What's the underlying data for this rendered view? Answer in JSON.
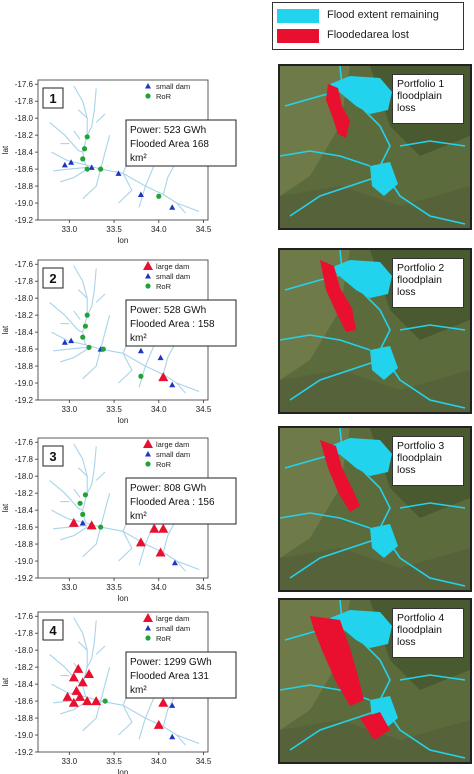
{
  "legend": {
    "items": [
      {
        "label": "Flood extent remaining",
        "color": "#22d3ee"
      },
      {
        "label": "Floodedarea lost",
        "color": "#e8102e"
      }
    ]
  },
  "colors": {
    "river": "#a8d4ea",
    "large_dam": "#e8102e",
    "small_dam": "#1f33c4",
    "ror": "#21a33a"
  },
  "chart_data": [
    {
      "type": "scatter",
      "panel_number": "1",
      "xlabel": "lon",
      "ylabel": "lat",
      "xlim": [
        32.65,
        34.55
      ],
      "ylim": [
        -19.2,
        -17.55
      ],
      "xticks": [
        "33.0",
        "33.5",
        "34.0",
        "34.5"
      ],
      "yticks": [
        "-17.6",
        "-17.8",
        "-18.0",
        "-18.2",
        "-18.4",
        "-18.6",
        "-18.8",
        "-19.0",
        "-19.2"
      ],
      "legend_entries": [
        "small dam",
        "RoR"
      ],
      "annotation_lines": [
        "Power: 523 GWh",
        "Flooded Area 168",
        "km²"
      ],
      "series": [
        {
          "name": "small dam",
          "points": [
            [
              32.95,
              -18.55
            ],
            [
              33.02,
              -18.52
            ],
            [
              33.25,
              -18.58
            ],
            [
              33.55,
              -18.65
            ],
            [
              33.8,
              -18.9
            ],
            [
              34.15,
              -19.05
            ]
          ]
        },
        {
          "name": "RoR",
          "points": [
            [
              33.2,
              -18.22
            ],
            [
              33.17,
              -18.36
            ],
            [
              33.15,
              -18.48
            ],
            [
              33.2,
              -18.6
            ],
            [
              33.35,
              -18.6
            ],
            [
              34.0,
              -18.92
            ]
          ]
        }
      ]
    },
    {
      "type": "scatter",
      "panel_number": "2",
      "xlabel": "lon",
      "ylabel": "lat",
      "xlim": [
        32.65,
        34.55
      ],
      "ylim": [
        -19.2,
        -17.55
      ],
      "xticks": [
        "33.0",
        "33.5",
        "34.0",
        "34.5"
      ],
      "yticks": [
        "-17.6",
        "-17.8",
        "-18.0",
        "-18.2",
        "-18.4",
        "-18.6",
        "-18.8",
        "-19.0",
        "-19.2"
      ],
      "legend_entries": [
        "large dam",
        "small dam",
        "RoR"
      ],
      "annotation_lines": [
        "Power: 528 GWh",
        "Flooded Area : 158",
        "km²"
      ],
      "series": [
        {
          "name": "large dam",
          "points": [
            [
              34.05,
              -18.93
            ]
          ]
        },
        {
          "name": "small dam",
          "points": [
            [
              32.95,
              -18.52
            ],
            [
              33.02,
              -18.5
            ],
            [
              33.35,
              -18.6
            ],
            [
              33.8,
              -18.62
            ],
            [
              34.02,
              -18.7
            ],
            [
              34.15,
              -19.02
            ]
          ]
        },
        {
          "name": "RoR",
          "points": [
            [
              33.2,
              -18.2
            ],
            [
              33.18,
              -18.33
            ],
            [
              33.15,
              -18.46
            ],
            [
              33.22,
              -18.58
            ],
            [
              33.38,
              -18.6
            ],
            [
              33.8,
              -18.92
            ]
          ]
        }
      ]
    },
    {
      "type": "scatter",
      "panel_number": "3",
      "xlabel": "lon",
      "ylabel": "lat",
      "xlim": [
        32.65,
        34.55
      ],
      "ylim": [
        -19.2,
        -17.55
      ],
      "xticks": [
        "33.0",
        "33.5",
        "34.0",
        "34.5"
      ],
      "yticks": [
        "-17.6",
        "-17.8",
        "-18.0",
        "-18.2",
        "-18.4",
        "-18.6",
        "-18.8",
        "-19.0",
        "-19.2"
      ],
      "legend_entries": [
        "large dam",
        "small dam",
        "RoR"
      ],
      "annotation_lines": [
        "Power: 808 GWh",
        "Flooded Area : 156",
        "km²"
      ],
      "series": [
        {
          "name": "large dam",
          "points": [
            [
              33.05,
              -18.55
            ],
            [
              33.25,
              -18.58
            ],
            [
              33.8,
              -18.78
            ],
            [
              33.95,
              -18.62
            ],
            [
              34.05,
              -18.62
            ],
            [
              34.02,
              -18.9
            ]
          ]
        },
        {
          "name": "small dam",
          "points": [
            [
              33.15,
              -18.55
            ],
            [
              34.18,
              -19.02
            ]
          ]
        },
        {
          "name": "RoR",
          "points": [
            [
              33.18,
              -18.22
            ],
            [
              33.12,
              -18.32
            ],
            [
              33.15,
              -18.45
            ],
            [
              33.35,
              -18.6
            ]
          ]
        }
      ]
    },
    {
      "type": "scatter",
      "panel_number": "4",
      "xlabel": "lon",
      "ylabel": "lat",
      "xlim": [
        32.65,
        34.55
      ],
      "ylim": [
        -19.2,
        -17.55
      ],
      "xticks": [
        "33.0",
        "33.5",
        "34.0",
        "34.5"
      ],
      "yticks": [
        "-17.6",
        "-17.8",
        "-18.0",
        "-18.2",
        "-18.4",
        "-18.6",
        "-18.8",
        "-19.0",
        "-19.2"
      ],
      "legend_entries": [
        "large dam",
        "small dam",
        "RoR"
      ],
      "annotation_lines": [
        "Power: 1299 GWh",
        "Flooded Area 131",
        "km²"
      ],
      "series": [
        {
          "name": "large dam",
          "points": [
            [
              33.1,
              -18.22
            ],
            [
              33.22,
              -18.28
            ],
            [
              33.05,
              -18.32
            ],
            [
              33.15,
              -18.38
            ],
            [
              33.08,
              -18.48
            ],
            [
              32.98,
              -18.55
            ],
            [
              33.12,
              -18.55
            ],
            [
              33.2,
              -18.6
            ],
            [
              33.3,
              -18.6
            ],
            [
              33.05,
              -18.62
            ],
            [
              34.05,
              -18.62
            ],
            [
              34.0,
              -18.88
            ]
          ]
        },
        {
          "name": "small dam",
          "points": [
            [
              34.15,
              -18.65
            ],
            [
              34.15,
              -19.02
            ]
          ]
        },
        {
          "name": "RoR",
          "points": [
            [
              33.4,
              -18.6
            ]
          ]
        }
      ]
    }
  ],
  "maps": [
    {
      "label_lines": [
        "Portfolio 1",
        "floodplain",
        "loss"
      ]
    },
    {
      "label_lines": [
        "Portfolio 2",
        "floodplain",
        "loss"
      ]
    },
    {
      "label_lines": [
        "Portfolio 3",
        "floodplain",
        "loss"
      ]
    },
    {
      "label_lines": [
        "Portfolio 4",
        "floodplain",
        "loss"
      ]
    }
  ]
}
